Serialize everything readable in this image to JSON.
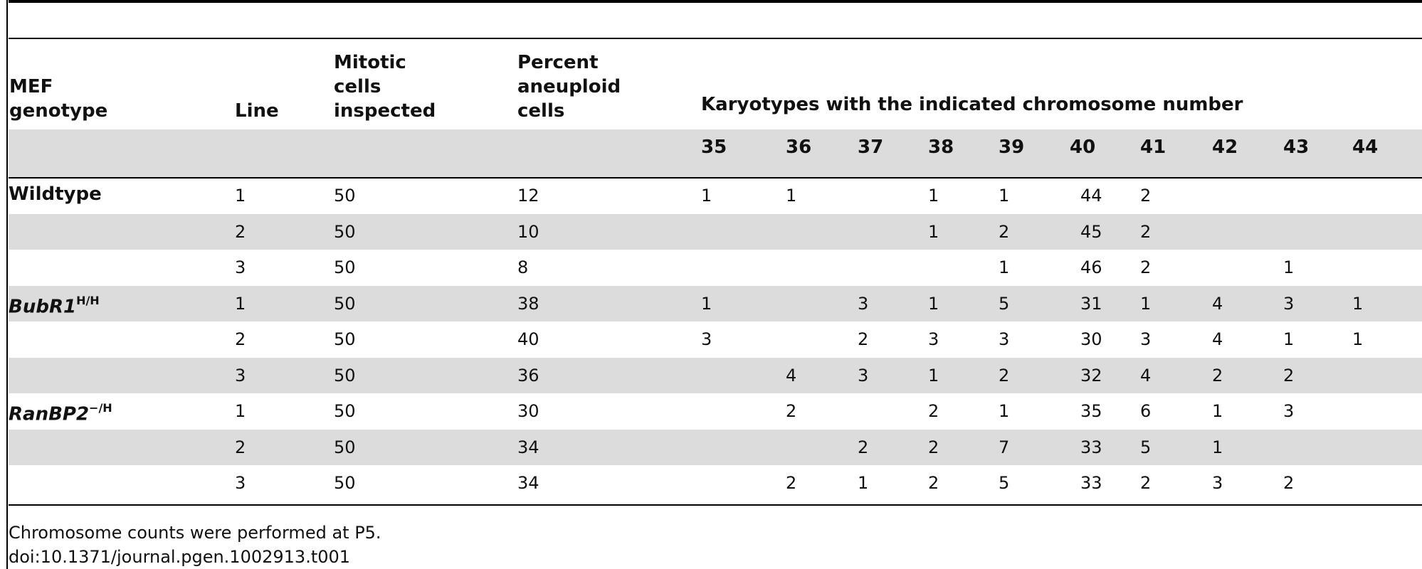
{
  "headers": {
    "genotype": [
      "MEF",
      "genotype"
    ],
    "line": "Line",
    "mitotic": [
      "Mitotic",
      "cells",
      "inspected"
    ],
    "percent": [
      "Percent",
      "aneuploid",
      "cells"
    ],
    "karyotypes": "Karyotypes with the indicated chromosome number",
    "chromosome_numbers": [
      "35",
      "36",
      "37",
      "38",
      "39",
      "40",
      "41",
      "42",
      "43",
      "44"
    ]
  },
  "rows": [
    {
      "genotype": "Wildtype",
      "sup": "",
      "italic": false,
      "line": "1",
      "mitotic": "50",
      "percent": "12",
      "counts": [
        "1",
        "1",
        "",
        "1",
        "1",
        "44",
        "2",
        "",
        "",
        ""
      ]
    },
    {
      "genotype": "",
      "sup": "",
      "italic": false,
      "line": "2",
      "mitotic": "50",
      "percent": "10",
      "counts": [
        "",
        "",
        "",
        "1",
        "2",
        "45",
        "2",
        "",
        "",
        ""
      ]
    },
    {
      "genotype": "",
      "sup": "",
      "italic": false,
      "line": "3",
      "mitotic": "50",
      "percent": "8",
      "counts": [
        "",
        "",
        "",
        "",
        "1",
        "46",
        "2",
        "",
        "1",
        ""
      ]
    },
    {
      "genotype": "BubR1",
      "sup": "H/H",
      "italic": true,
      "line": "1",
      "mitotic": "50",
      "percent": "38",
      "counts": [
        "1",
        "",
        "3",
        "1",
        "5",
        "31",
        "1",
        "4",
        "3",
        "1"
      ]
    },
    {
      "genotype": "",
      "sup": "",
      "italic": false,
      "line": "2",
      "mitotic": "50",
      "percent": "40",
      "counts": [
        "3",
        "",
        "2",
        "3",
        "3",
        "30",
        "3",
        "4",
        "1",
        "1"
      ]
    },
    {
      "genotype": "",
      "sup": "",
      "italic": false,
      "line": "3",
      "mitotic": "50",
      "percent": "36",
      "counts": [
        "",
        "4",
        "3",
        "1",
        "2",
        "32",
        "4",
        "2",
        "2",
        ""
      ]
    },
    {
      "genotype": "RanBP2",
      "sup": "−/H",
      "italic": true,
      "line": "1",
      "mitotic": "50",
      "percent": "30",
      "counts": [
        "",
        "2",
        "",
        "2",
        "1",
        "35",
        "6",
        "1",
        "3",
        ""
      ]
    },
    {
      "genotype": "",
      "sup": "",
      "italic": false,
      "line": "2",
      "mitotic": "50",
      "percent": "34",
      "counts": [
        "",
        "",
        "2",
        "2",
        "7",
        "33",
        "5",
        "1",
        "",
        ""
      ]
    },
    {
      "genotype": "",
      "sup": "",
      "italic": false,
      "line": "3",
      "mitotic": "50",
      "percent": "34",
      "counts": [
        "",
        "2",
        "1",
        "2",
        "5",
        "33",
        "2",
        "3",
        "2",
        ""
      ]
    }
  ],
  "footnotes": {
    "note": "Chromosome counts were performed at P5.",
    "doi": "doi:10.1371/journal.pgen.1002913.t001"
  }
}
